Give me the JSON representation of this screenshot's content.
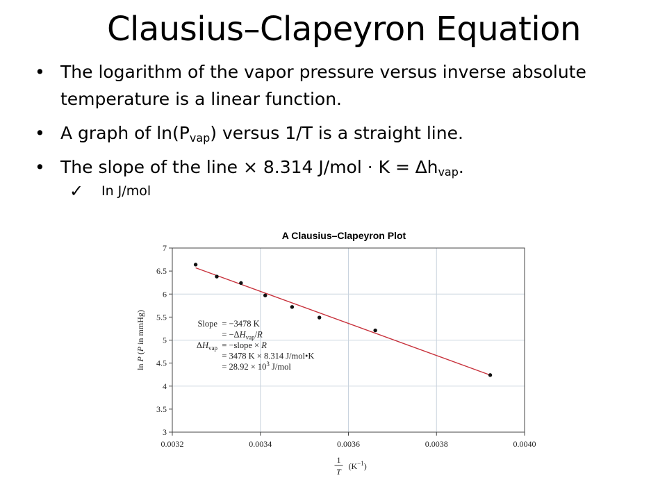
{
  "slide": {
    "title": "Clausius–Clapeyron Equation",
    "bullets": [
      {
        "text": "The logarithm of the vapor pressure versus inverse absolute temperature is a linear function."
      },
      {
        "before": "A graph of ln(P",
        "sub": "vap",
        "after": ") versus 1/T is a straight line."
      },
      {
        "before": "The slope of the line × 8.314 J/mol · K = ∆h",
        "sub": "vap",
        "after": "."
      }
    ],
    "sub_bullet": "In J/mol",
    "bullet_glyph": "•",
    "check_glyph": "✓"
  },
  "chart_data": {
    "type": "scatter",
    "title": "A Clausius–Clapeyron Plot",
    "ylabel_html": "ln <tspan font-style='italic'>P</tspan> (<tspan font-style='italic'>P</tspan> in mmHg)",
    "xlabel_frac_num": "1",
    "xlabel_frac_den": "T",
    "xlabel_unit": "(K",
    "xlabel_unit_sup": "−1",
    "xlabel_unit_close": ")",
    "xlim": [
      0.0032,
      0.004
    ],
    "ylim": [
      3,
      7
    ],
    "xticks": [
      "0.0032",
      "0.0034",
      "0.0036",
      "0.0038",
      "0.0040"
    ],
    "xtick_values": [
      0.0032,
      0.0034,
      0.0036,
      0.0038,
      0.004
    ],
    "yticks": [
      "3",
      "3.5",
      "4",
      "4.5",
      "5",
      "5.5",
      "6",
      "6.5",
      "7"
    ],
    "ytick_values": [
      3,
      3.5,
      4,
      4.5,
      5,
      5.5,
      6,
      6.5,
      7
    ],
    "grid": true,
    "points": [
      {
        "x": 0.003253,
        "y": 6.64
      },
      {
        "x": 0.003301,
        "y": 6.38
      },
      {
        "x": 0.003356,
        "y": 6.24
      },
      {
        "x": 0.003411,
        "y": 5.97
      },
      {
        "x": 0.003472,
        "y": 5.72
      },
      {
        "x": 0.003534,
        "y": 5.49
      },
      {
        "x": 0.003661,
        "y": 5.21
      },
      {
        "x": 0.003922,
        "y": 4.24
      }
    ],
    "fit_line": {
      "x": [
        0.003253,
        0.003922
      ],
      "y": [
        6.57,
        4.24
      ]
    },
    "colors": {
      "points": "#111111",
      "fit": "#c8323c",
      "grid": "#c9d3de",
      "frame": "#444444"
    },
    "annotation": [
      {
        "label": "Slope",
        "value": "= −3478 K"
      },
      {
        "label": "",
        "value": "= −Δ<tspan font-style='italic'>H</tspan><tspan font-size='9' dy='3'>vap</tspan><tspan dy='-3'>/</tspan><tspan font-style='italic'>R</tspan>"
      },
      {
        "label": "Δ<tspan font-style='italic'>H</tspan><tspan font-size='9' dy='3'>vap</tspan>",
        "value": "= −slope × <tspan font-style='italic'>R</tspan>"
      },
      {
        "label": "",
        "value": "= 3478 K × 8.314 J/mol•K"
      },
      {
        "label": "",
        "value": "= 28.92 × 10<tspan font-size='9' dy='-5'>3</tspan><tspan dy='5'> J/mol</tspan>"
      }
    ]
  }
}
